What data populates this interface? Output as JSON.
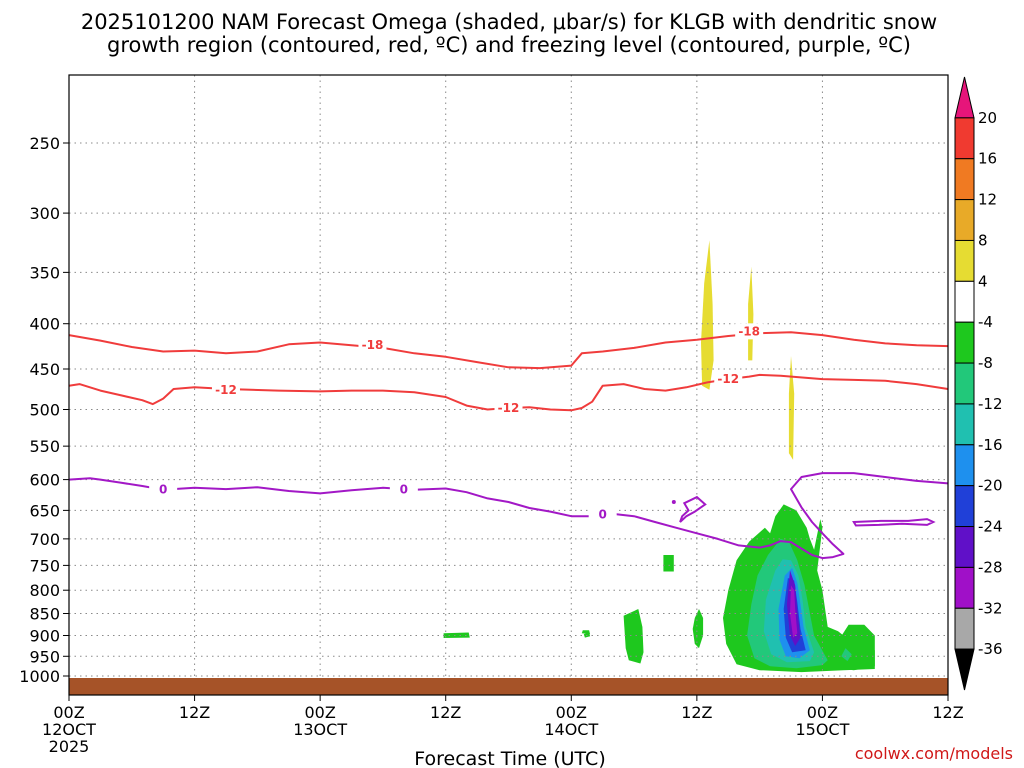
{
  "title_lines": [
    "2025101200 NAM Forecast Omega (shaded, μbar/s) for KLGB with dendritic snow",
    "growth region (contoured, red, ºC) and freezing level (contoured, purple, ºC)"
  ],
  "credit": "coolwx.com/models",
  "chart_data": {
    "type": "time-height cross section",
    "title": "2025101200 NAM Forecast Omega (shaded, μbar/s) for KLGB with dendritic snow growth region (contoured, red, ºC) and freezing level (contoured, purple, ºC)",
    "xlabel": "Forecast Time (UTC)",
    "ylabel": "",
    "xlim": [
      0,
      84
    ],
    "ylim_hpa": [
      1030,
      200
    ],
    "y_ticks": [
      250,
      300,
      350,
      400,
      450,
      500,
      550,
      600,
      650,
      700,
      750,
      800,
      850,
      900,
      950,
      1000
    ],
    "x_ticks": [
      {
        "hour": 0,
        "lines": [
          "00Z",
          "12OCT",
          "2025"
        ]
      },
      {
        "hour": 12,
        "lines": [
          "12Z"
        ]
      },
      {
        "hour": 24,
        "lines": [
          "00Z",
          "13OCT"
        ]
      },
      {
        "hour": 36,
        "lines": [
          "12Z"
        ]
      },
      {
        "hour": 48,
        "lines": [
          "00Z",
          "14OCT"
        ]
      },
      {
        "hour": 60,
        "lines": [
          "12Z"
        ]
      },
      {
        "hour": 72,
        "lines": [
          "00Z",
          "15OCT"
        ]
      },
      {
        "hour": 84,
        "lines": [
          "12Z"
        ]
      }
    ],
    "colorbar": {
      "labels": [
        "20",
        "16",
        "12",
        "8",
        "4",
        "-4",
        "-8",
        "-12",
        "-16",
        "-20",
        "-24",
        "-28",
        "-32",
        "-36"
      ],
      "bands": [
        {
          "from": 20,
          "to": 24,
          "color": "#e6157a"
        },
        {
          "from": 16,
          "to": 20,
          "color": "#f03a30"
        },
        {
          "from": 12,
          "to": 16,
          "color": "#f07a22"
        },
        {
          "from": 8,
          "to": 12,
          "color": "#e8aa28"
        },
        {
          "from": 4,
          "to": 8,
          "color": "#e6dc32"
        },
        {
          "from": -4,
          "to": 4,
          "color": "#ffffff"
        },
        {
          "from": -8,
          "to": -4,
          "color": "#1ec81e"
        },
        {
          "from": -12,
          "to": -8,
          "color": "#22c87a"
        },
        {
          "from": -16,
          "to": -12,
          "color": "#20c0b0"
        },
        {
          "from": -20,
          "to": -16,
          "color": "#1e90ee"
        },
        {
          "from": -24,
          "to": -20,
          "color": "#2040d8"
        },
        {
          "from": -28,
          "to": -24,
          "color": "#6010c8"
        },
        {
          "from": -32,
          "to": -28,
          "color": "#a010c8"
        },
        {
          "from": -36,
          "to": -32,
          "color": "#a8a8a8"
        },
        {
          "from": -40,
          "to": -36,
          "color": "#000000"
        }
      ]
    },
    "contours": [
      {
        "name": "-18 ºC",
        "label": "-18",
        "color": "#f03c3c",
        "points": [
          [
            0,
            412
          ],
          [
            3,
            418
          ],
          [
            6,
            425
          ],
          [
            9,
            430
          ],
          [
            12,
            429
          ],
          [
            15,
            432
          ],
          [
            18,
            430
          ],
          [
            21,
            422
          ],
          [
            24,
            420
          ],
          [
            27,
            423
          ],
          [
            30,
            426
          ],
          [
            33,
            432
          ],
          [
            36,
            436
          ],
          [
            39,
            442
          ],
          [
            42,
            448
          ],
          [
            45,
            449
          ],
          [
            48,
            446
          ],
          [
            49,
            432
          ],
          [
            51,
            430
          ],
          [
            54,
            426
          ],
          [
            57,
            420
          ],
          [
            60,
            417
          ],
          [
            63,
            413
          ],
          [
            66,
            410
          ],
          [
            69,
            409
          ],
          [
            72,
            412
          ],
          [
            75,
            417
          ],
          [
            78,
            421
          ],
          [
            81,
            423
          ],
          [
            84,
            424
          ]
        ],
        "label_at": [
          {
            "hour": 29,
            "hpa": 423
          },
          {
            "hour": 65,
            "hpa": 408
          }
        ]
      },
      {
        "name": "-12 ºC",
        "label": "-12",
        "color": "#f03c3c",
        "points": [
          [
            0,
            470
          ],
          [
            1,
            468
          ],
          [
            3,
            476
          ],
          [
            5,
            482
          ],
          [
            7,
            488
          ],
          [
            8,
            493
          ],
          [
            9,
            486
          ],
          [
            10,
            474
          ],
          [
            12,
            472
          ],
          [
            15,
            474
          ],
          [
            20,
            476
          ],
          [
            24,
            477
          ],
          [
            27,
            476
          ],
          [
            30,
            476
          ],
          [
            33,
            478
          ],
          [
            36,
            484
          ],
          [
            38,
            495
          ],
          [
            40,
            500
          ],
          [
            42,
            498
          ],
          [
            44,
            497
          ],
          [
            46,
            500
          ],
          [
            48,
            501
          ],
          [
            49,
            498
          ],
          [
            50,
            490
          ],
          [
            51,
            470
          ],
          [
            53,
            468
          ],
          [
            55,
            474
          ],
          [
            57,
            476
          ],
          [
            59,
            472
          ],
          [
            61,
            466
          ],
          [
            63,
            462
          ],
          [
            65,
            459
          ],
          [
            66,
            457
          ],
          [
            68,
            458
          ],
          [
            72,
            462
          ],
          [
            75,
            463
          ],
          [
            78,
            464
          ],
          [
            81,
            468
          ],
          [
            84,
            474
          ]
        ],
        "label_at": [
          {
            "hour": 15,
            "hpa": 475
          },
          {
            "hour": 42,
            "hpa": 498
          },
          {
            "hour": 63,
            "hpa": 462
          }
        ]
      },
      {
        "name": "0 ºC",
        "label": "0",
        "color": "#a218c6",
        "points": [
          [
            0,
            600
          ],
          [
            2,
            598
          ],
          [
            3,
            600
          ],
          [
            5,
            605
          ],
          [
            7,
            610
          ],
          [
            9,
            616
          ],
          [
            12,
            613
          ],
          [
            15,
            615
          ],
          [
            18,
            612
          ],
          [
            21,
            618
          ],
          [
            24,
            622
          ],
          [
            27,
            617
          ],
          [
            30,
            613
          ],
          [
            33,
            616
          ],
          [
            36,
            614
          ],
          [
            38,
            620
          ],
          [
            40,
            630
          ],
          [
            42,
            636
          ],
          [
            44,
            646
          ],
          [
            46,
            652
          ],
          [
            48,
            660
          ],
          [
            50,
            660
          ],
          [
            52,
            656
          ],
          [
            54,
            660
          ],
          [
            56,
            670
          ],
          [
            58,
            680
          ],
          [
            60,
            690
          ],
          [
            62,
            700
          ],
          [
            64,
            712
          ],
          [
            66,
            716
          ],
          [
            67,
            712
          ],
          [
            68,
            704
          ],
          [
            69,
            706
          ],
          [
            70,
            718
          ],
          [
            71,
            730
          ],
          [
            72,
            736
          ],
          [
            73,
            734
          ],
          [
            74,
            728
          ],
          [
            73,
            710
          ],
          [
            72,
            690
          ],
          [
            71,
            670
          ],
          [
            70,
            645
          ],
          [
            69,
            615
          ],
          [
            70,
            596
          ],
          [
            72,
            590
          ],
          [
            75,
            590
          ],
          [
            78,
            596
          ],
          [
            81,
            602
          ],
          [
            84,
            606
          ]
        ],
        "label_at": [
          {
            "hour": 9,
            "hpa": 616
          },
          {
            "hour": 32,
            "hpa": 616
          },
          {
            "hour": 51,
            "hpa": 657
          }
        ]
      }
    ],
    "omega_regions": [
      {
        "sign": "positive",
        "color": "#e6dc32",
        "approx_hours": [
          60.5,
          61.5
        ],
        "approx_hpa": [
          320,
          470
        ]
      },
      {
        "sign": "positive",
        "color": "#e6dc32",
        "approx_hours": [
          64.9,
          65.3
        ],
        "approx_hpa": [
          345,
          440
        ]
      },
      {
        "sign": "positive",
        "color": "#e6dc32",
        "approx_hours": [
          68.8,
          69.2
        ],
        "approx_hpa": [
          440,
          570
        ]
      },
      {
        "sign": "negative",
        "color": "#1ec81e",
        "approx_hours": [
          62,
          74
        ],
        "approx_hpa": [
          640,
          990
        ]
      },
      {
        "sign": "negative",
        "color": "#a010c8",
        "approx_hours": [
          68.5,
          70
        ],
        "approx_hpa": [
          740,
          935
        ]
      }
    ],
    "terrain_color": "#a65328"
  }
}
